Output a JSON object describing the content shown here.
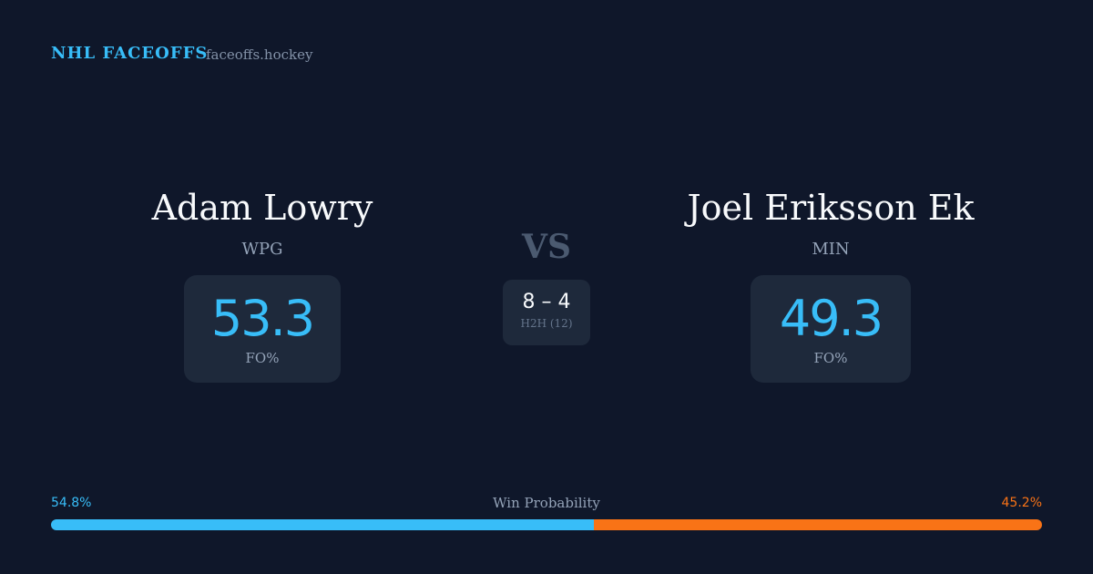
{
  "header": {
    "title": "NHL FACEOFFS",
    "site": "faceoffs.hockey"
  },
  "players": [
    {
      "name": "Adam Lowry",
      "team": "WPG",
      "stat": "53.3",
      "stat_label": "FO%"
    },
    {
      "name": "Joel Eriksson Ek",
      "team": "MIN",
      "stat": "49.3",
      "stat_label": "FO%"
    }
  ],
  "versus": {
    "label": "VS",
    "score": "8 – 4",
    "caption": "H2H (12)"
  },
  "win_probability": {
    "title": "Win Probability",
    "segments": [
      {
        "value": 54.8,
        "label": "54.8%",
        "color": "#38bdf8"
      },
      {
        "value": 45.2,
        "label": "45.2%",
        "color": "#f97316"
      }
    ]
  }
}
